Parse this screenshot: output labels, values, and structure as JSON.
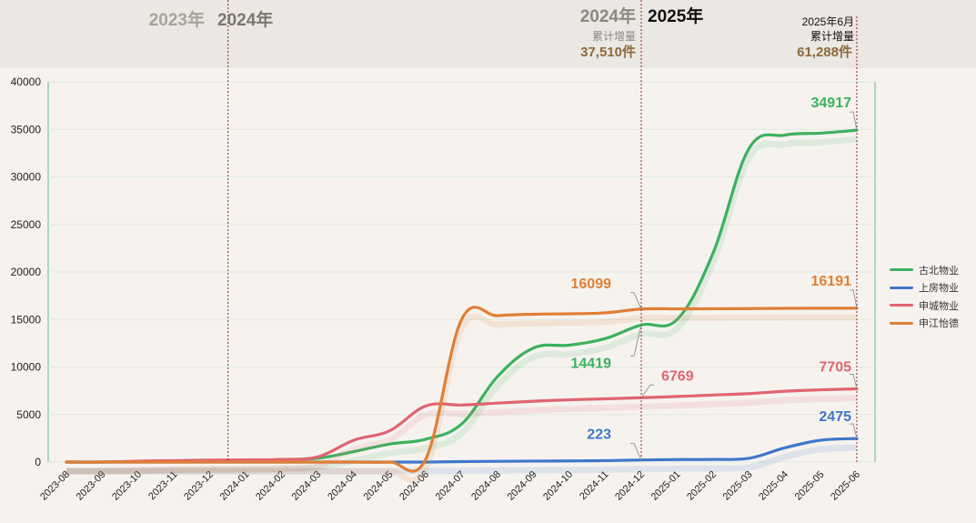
{
  "chart_data": {
    "type": "line",
    "categories": [
      "2023-08",
      "2023-09",
      "2023-10",
      "2023-11",
      "2023-12",
      "2024-01",
      "2024-02",
      "2024-03",
      "2024-04",
      "2024-05",
      "2024-06",
      "2024-07",
      "2024-08",
      "2024-09",
      "2024-10",
      "2024-11",
      "2024-12",
      "2025-01",
      "2025-02",
      "2025-03",
      "2025-04",
      "2025-05",
      "2025-06"
    ],
    "ylim": [
      0,
      40000
    ],
    "y_ticks": [
      "0",
      "5000",
      "10000",
      "15000",
      "20000",
      "25000",
      "30000",
      "35000",
      "40000"
    ],
    "grid": true,
    "legend_position": "right",
    "series": [
      {
        "name": "古北物业",
        "color": "#3cb15f",
        "values": [
          0,
          0,
          50,
          100,
          150,
          180,
          250,
          400,
          1100,
          1900,
          2400,
          4000,
          9000,
          12000,
          12300,
          13000,
          14419,
          15000,
          22000,
          33000,
          34400,
          34600,
          34917
        ]
      },
      {
        "name": "上房物业",
        "color": "#3f77c9",
        "values": [
          0,
          0,
          0,
          0,
          0,
          0,
          0,
          0,
          0,
          0,
          0,
          50,
          80,
          100,
          120,
          150,
          223,
          260,
          280,
          400,
          1500,
          2300,
          2475
        ]
      },
      {
        "name": "申城物业",
        "color": "#e06470",
        "values": [
          0,
          0,
          100,
          150,
          200,
          230,
          280,
          550,
          2300,
          3300,
          5900,
          6000,
          6200,
          6400,
          6550,
          6650,
          6769,
          6900,
          7050,
          7200,
          7450,
          7600,
          7705
        ]
      },
      {
        "name": "申江怡德",
        "color": "#e07f35",
        "values": [
          0,
          0,
          0,
          0,
          0,
          0,
          0,
          0,
          0,
          0,
          300,
          15000,
          15400,
          15550,
          15600,
          15700,
          16099,
          16120,
          16130,
          16150,
          16170,
          16185,
          16191
        ]
      }
    ],
    "annotations": [
      {
        "text": "34917",
        "color": "#3cb15f",
        "series": 0,
        "point": 22
      },
      {
        "text": "16191",
        "color": "#e07f35",
        "series": 3,
        "point": 22
      },
      {
        "text": "7705",
        "color": "#e06470",
        "series": 2,
        "point": 22
      },
      {
        "text": "2475",
        "color": "#3f77c9",
        "series": 1,
        "point": 22
      },
      {
        "text": "16099",
        "color": "#e07f35",
        "series": 3,
        "point": 16
      },
      {
        "text": "14419",
        "color": "#3cb15f",
        "series": 0,
        "point": 16
      },
      {
        "text": "6769",
        "color": "#e06470",
        "series": 2,
        "point": 16
      },
      {
        "text": "223",
        "color": "#3f77c9",
        "series": 1,
        "point": 16
      }
    ]
  },
  "header": {
    "year_2023": "2023年",
    "year_2024": "2024年",
    "year_2024_right": "2024年",
    "year_2025": "2025年",
    "cum_2024_label": "累计增量",
    "cum_2024_value": "37,510件",
    "cum_2025_title": "2025年6月",
    "cum_2025_label": "累计增量",
    "cum_2025_value": "61,288件"
  }
}
